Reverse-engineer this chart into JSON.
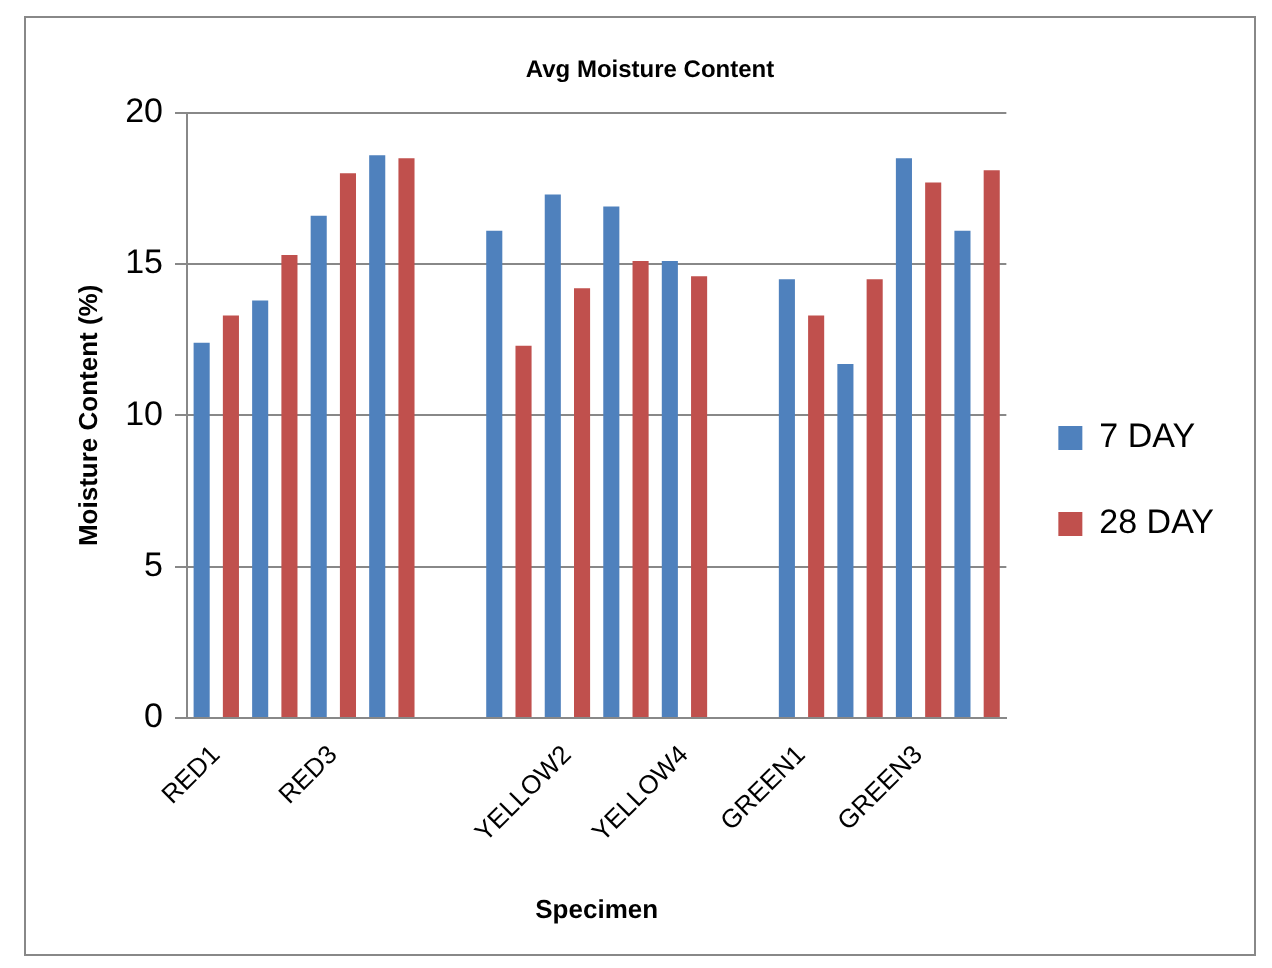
{
  "chart_data": {
    "type": "bar",
    "title": "Avg Moisture Content",
    "xlabel": "Specimen",
    "ylabel": "Moisture Content (%)",
    "categories": [
      "RED1",
      null,
      "RED3",
      null,
      null,
      null,
      "YELLOW2",
      null,
      "YELLOW4",
      null,
      "GREEN1",
      null,
      "GREEN3",
      null
    ],
    "series": [
      {
        "name": "7 DAY",
        "color": "#4f81bd",
        "values": [
          12.4,
          13.8,
          16.6,
          18.6,
          null,
          16.1,
          17.3,
          16.9,
          15.1,
          null,
          14.5,
          11.7,
          18.5,
          16.1
        ]
      },
      {
        "name": "28 DAY",
        "color": "#c0504d",
        "values": [
          13.3,
          15.3,
          18.0,
          18.5,
          null,
          12.3,
          14.2,
          15.1,
          14.6,
          null,
          13.3,
          14.5,
          17.7,
          18.1
        ]
      }
    ],
    "ylim": [
      0,
      20
    ],
    "yticks": [
      0,
      5,
      10,
      15,
      20
    ],
    "grid": "y",
    "legend": "right"
  }
}
